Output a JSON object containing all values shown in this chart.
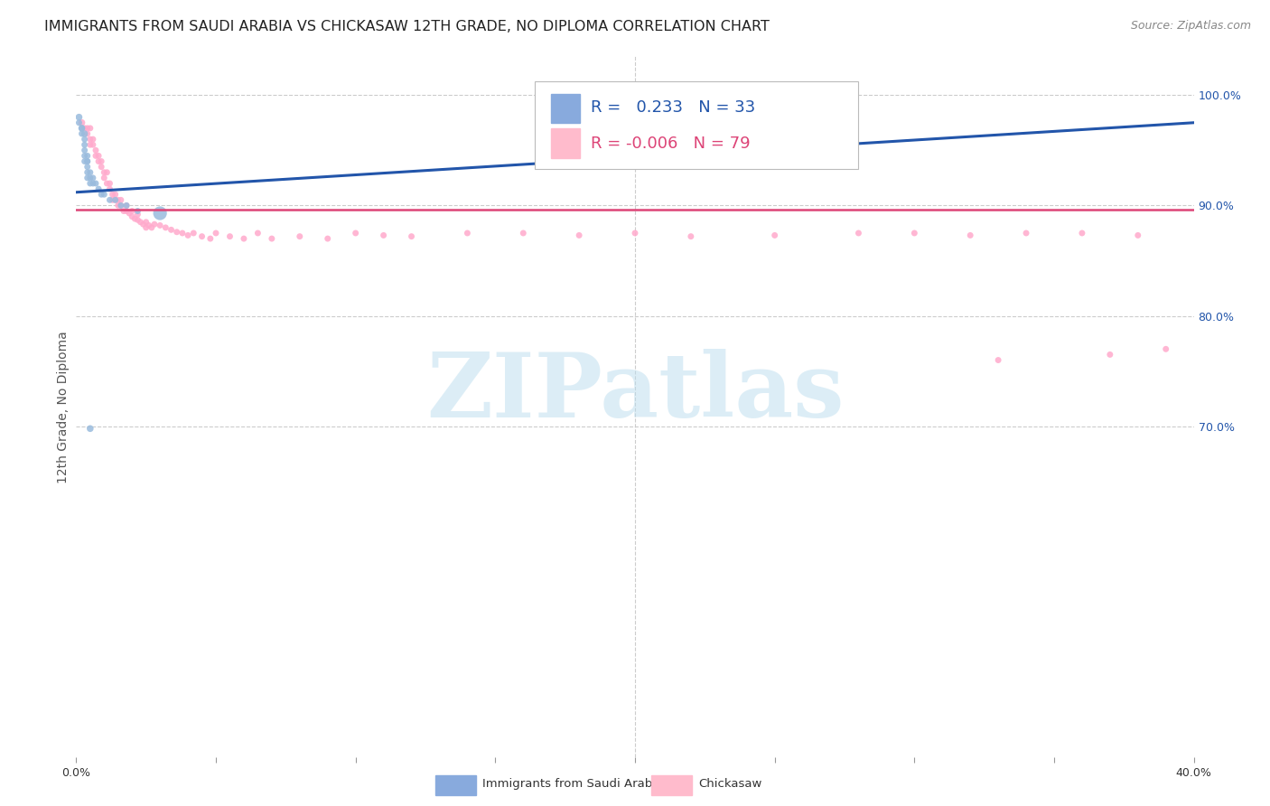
{
  "title": "IMMIGRANTS FROM SAUDI ARABIA VS CHICKASAW 12TH GRADE, NO DIPLOMA CORRELATION CHART",
  "source": "Source: ZipAtlas.com",
  "ylabel": "12th Grade, No Diploma",
  "legend_r_blue": "0.233",
  "legend_n_blue": "33",
  "legend_r_pink": "-0.006",
  "legend_n_pink": "79",
  "blue_line_x": [
    0.0,
    0.4
  ],
  "blue_line_y": [
    0.912,
    0.975
  ],
  "pink_line_y": 0.896,
  "blue_color": "#99BBDD",
  "pink_color": "#FFAACC",
  "blue_line_color": "#2255AA",
  "pink_line_color": "#DD4477",
  "legend_blue_color": "#88AADD",
  "legend_pink_color": "#FFBBCC",
  "watermark_text": "ZIPatlas",
  "watermark_color": "#BBDDEE",
  "background_color": "#FFFFFF",
  "xlim": [
    0.0,
    0.4
  ],
  "ylim": [
    0.4,
    1.035
  ],
  "right_ytick_values": [
    1.0,
    0.9,
    0.8,
    0.7
  ],
  "right_ytick_labels": [
    "100.0%",
    "90.0%",
    "80.0%",
    "70.0%"
  ],
  "blue_scatter_x": [
    0.001,
    0.001,
    0.002,
    0.002,
    0.002,
    0.003,
    0.003,
    0.003,
    0.003,
    0.003,
    0.003,
    0.004,
    0.004,
    0.004,
    0.004,
    0.004,
    0.004,
    0.005,
    0.005,
    0.005,
    0.006,
    0.006,
    0.007,
    0.008,
    0.009,
    0.01,
    0.012,
    0.014,
    0.016,
    0.018,
    0.022,
    0.03,
    0.005
  ],
  "blue_scatter_y": [
    0.98,
    0.975,
    0.97,
    0.965,
    0.97,
    0.965,
    0.96,
    0.955,
    0.95,
    0.945,
    0.94,
    0.945,
    0.94,
    0.94,
    0.935,
    0.93,
    0.925,
    0.93,
    0.925,
    0.92,
    0.925,
    0.92,
    0.92,
    0.915,
    0.91,
    0.91,
    0.905,
    0.905,
    0.9,
    0.9,
    0.895,
    0.893,
    0.698
  ],
  "blue_scatter_size": [
    30,
    25,
    30,
    25,
    25,
    30,
    25,
    25,
    25,
    25,
    25,
    25,
    25,
    25,
    25,
    25,
    25,
    25,
    25,
    25,
    25,
    25,
    25,
    25,
    25,
    25,
    25,
    25,
    25,
    25,
    25,
    120,
    30
  ],
  "pink_scatter_x": [
    0.002,
    0.003,
    0.004,
    0.004,
    0.005,
    0.005,
    0.005,
    0.006,
    0.006,
    0.007,
    0.007,
    0.008,
    0.008,
    0.009,
    0.009,
    0.01,
    0.01,
    0.011,
    0.011,
    0.012,
    0.012,
    0.013,
    0.013,
    0.014,
    0.014,
    0.015,
    0.015,
    0.016,
    0.016,
    0.017,
    0.018,
    0.018,
    0.019,
    0.02,
    0.02,
    0.021,
    0.022,
    0.022,
    0.023,
    0.024,
    0.025,
    0.025,
    0.026,
    0.027,
    0.028,
    0.03,
    0.032,
    0.034,
    0.036,
    0.038,
    0.04,
    0.042,
    0.045,
    0.048,
    0.05,
    0.055,
    0.06,
    0.065,
    0.07,
    0.08,
    0.09,
    0.1,
    0.11,
    0.12,
    0.14,
    0.16,
    0.18,
    0.2,
    0.22,
    0.25,
    0.28,
    0.3,
    0.32,
    0.34,
    0.36,
    0.38,
    0.39,
    0.37,
    0.33
  ],
  "pink_scatter_y": [
    0.975,
    0.97,
    0.965,
    0.97,
    0.96,
    0.955,
    0.97,
    0.96,
    0.955,
    0.95,
    0.945,
    0.945,
    0.94,
    0.94,
    0.935,
    0.93,
    0.925,
    0.93,
    0.92,
    0.92,
    0.915,
    0.91,
    0.905,
    0.91,
    0.905,
    0.905,
    0.9,
    0.905,
    0.9,
    0.895,
    0.9,
    0.895,
    0.893,
    0.895,
    0.89,
    0.888,
    0.892,
    0.887,
    0.885,
    0.883,
    0.88,
    0.885,
    0.882,
    0.88,
    0.883,
    0.882,
    0.88,
    0.878,
    0.876,
    0.875,
    0.873,
    0.875,
    0.872,
    0.87,
    0.875,
    0.872,
    0.87,
    0.875,
    0.87,
    0.872,
    0.87,
    0.875,
    0.873,
    0.872,
    0.875,
    0.875,
    0.873,
    0.875,
    0.872,
    0.873,
    0.875,
    0.875,
    0.873,
    0.875,
    0.875,
    0.873,
    0.77,
    0.765,
    0.76
  ],
  "pink_scatter_size": [
    30,
    25,
    25,
    25,
    25,
    25,
    25,
    25,
    25,
    25,
    25,
    25,
    25,
    25,
    25,
    25,
    25,
    25,
    25,
    25,
    25,
    25,
    25,
    25,
    25,
    25,
    25,
    25,
    25,
    25,
    25,
    25,
    25,
    25,
    25,
    25,
    25,
    25,
    25,
    25,
    25,
    25,
    25,
    25,
    25,
    25,
    25,
    25,
    25,
    25,
    25,
    25,
    25,
    25,
    25,
    25,
    25,
    25,
    25,
    25,
    25,
    25,
    25,
    25,
    25,
    25,
    25,
    25,
    25,
    25,
    25,
    25,
    25,
    25,
    25,
    25,
    25,
    25,
    25
  ],
  "title_fontsize": 11.5,
  "source_fontsize": 9,
  "axis_label_fontsize": 10,
  "tick_fontsize": 9,
  "legend_fontsize": 13,
  "watermark_fontsize": 72
}
